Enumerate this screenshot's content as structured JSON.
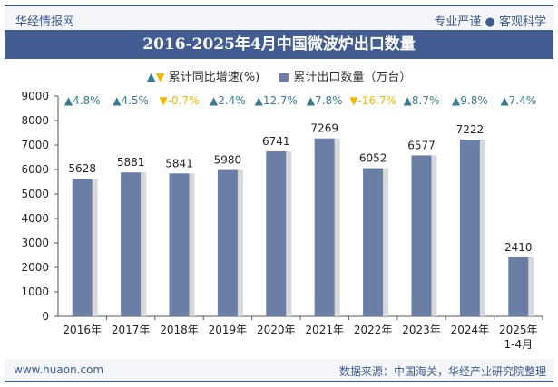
{
  "header": {
    "brand": "华经情报网",
    "slogan": "专业严谨 ● 客观科学"
  },
  "footer": {
    "website": "www.huaon.com",
    "source": "数据来源：中国海关，华经产业研究院整理"
  },
  "colors": {
    "bar": "#6a7ea6",
    "up": "#3a7b95",
    "down": "#f5b800",
    "title_bg": "#435d92"
  },
  "chart_data": {
    "type": "bar",
    "title": "2016-2025年4月中国微波炉出口数量",
    "legend": {
      "growth": "累计同比增速(%)",
      "quantity": "累计出口数量（万台）"
    },
    "categories": [
      "2016年",
      "2017年",
      "2018年",
      "2019年",
      "2020年",
      "2021年",
      "2022年",
      "2023年",
      "2024年",
      "2025年\n1-4月"
    ],
    "series": [
      {
        "name": "累计出口数量（万台）",
        "values": [
          5628,
          5881,
          5841,
          5980,
          6741,
          7269,
          6052,
          6577,
          7222,
          2410
        ]
      }
    ],
    "growth": [
      "4.8%",
      "4.5%",
      "-0.7%",
      "2.4%",
      "12.7%",
      "7.8%",
      "-16.7%",
      "8.7%",
      "9.8%",
      "7.4%"
    ],
    "ylim": [
      0,
      9000
    ],
    "yticks": [
      0,
      1000,
      2000,
      3000,
      4000,
      5000,
      6000,
      7000,
      8000,
      9000
    ],
    "grid": false
  }
}
